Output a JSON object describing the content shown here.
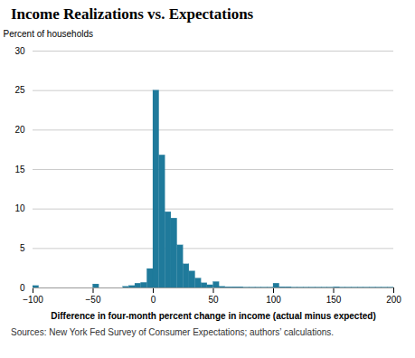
{
  "chart_data": {
    "type": "histogram",
    "title": "Income Realizations vs. Expectations",
    "ylabel": "Percent of households",
    "xlabel": "Difference in four-month percent change in income (actual minus expected)",
    "source": "Sources: New York Fed Survey of Consumer Expectations; authors’ calculations.",
    "color": "#1f7a9b",
    "bins": [
      -100,
      -95,
      -90,
      -85,
      -80,
      -75,
      -70,
      -65,
      -60,
      -55,
      -50,
      -45,
      -40,
      -35,
      -30,
      -25,
      -20,
      -15,
      -10,
      -5,
      0,
      5,
      10,
      15,
      20,
      25,
      30,
      35,
      40,
      45,
      50,
      55,
      60,
      65,
      70,
      75,
      80,
      85,
      90,
      95,
      100,
      105,
      110,
      115,
      120,
      125,
      130,
      135,
      140,
      145,
      150,
      155,
      160,
      165,
      170,
      175,
      180,
      185,
      190,
      195,
      200
    ],
    "values": [
      0.25,
      0.0,
      0.0,
      0.0,
      0.0,
      0.0,
      0.0,
      0.0,
      0.0,
      0.0,
      0.45,
      0.0,
      0.0,
      0.0,
      0.0,
      0.15,
      0.25,
      0.55,
      0.65,
      2.4,
      25.0,
      16.8,
      9.6,
      8.8,
      5.4,
      3.0,
      2.1,
      1.2,
      0.6,
      0.35,
      0.75,
      0.15,
      0.1,
      0.1,
      0.1,
      0.05,
      0.05,
      0.05,
      0.05,
      0.05,
      0.55,
      0.1,
      0.1,
      0.05,
      0.05,
      0.05,
      0.05,
      0.05,
      0.05,
      0.05,
      0.1,
      0.05,
      0.05,
      0.05,
      0.05,
      0.05,
      0.05,
      0.05,
      0.05,
      0.05
    ],
    "xlim": [
      -100,
      200
    ],
    "ylim": [
      0,
      30
    ],
    "xticks": [
      -100,
      -50,
      0,
      50,
      100,
      150,
      200
    ],
    "yticks": [
      0,
      5,
      10,
      15,
      20,
      25,
      30
    ],
    "grid": true
  }
}
